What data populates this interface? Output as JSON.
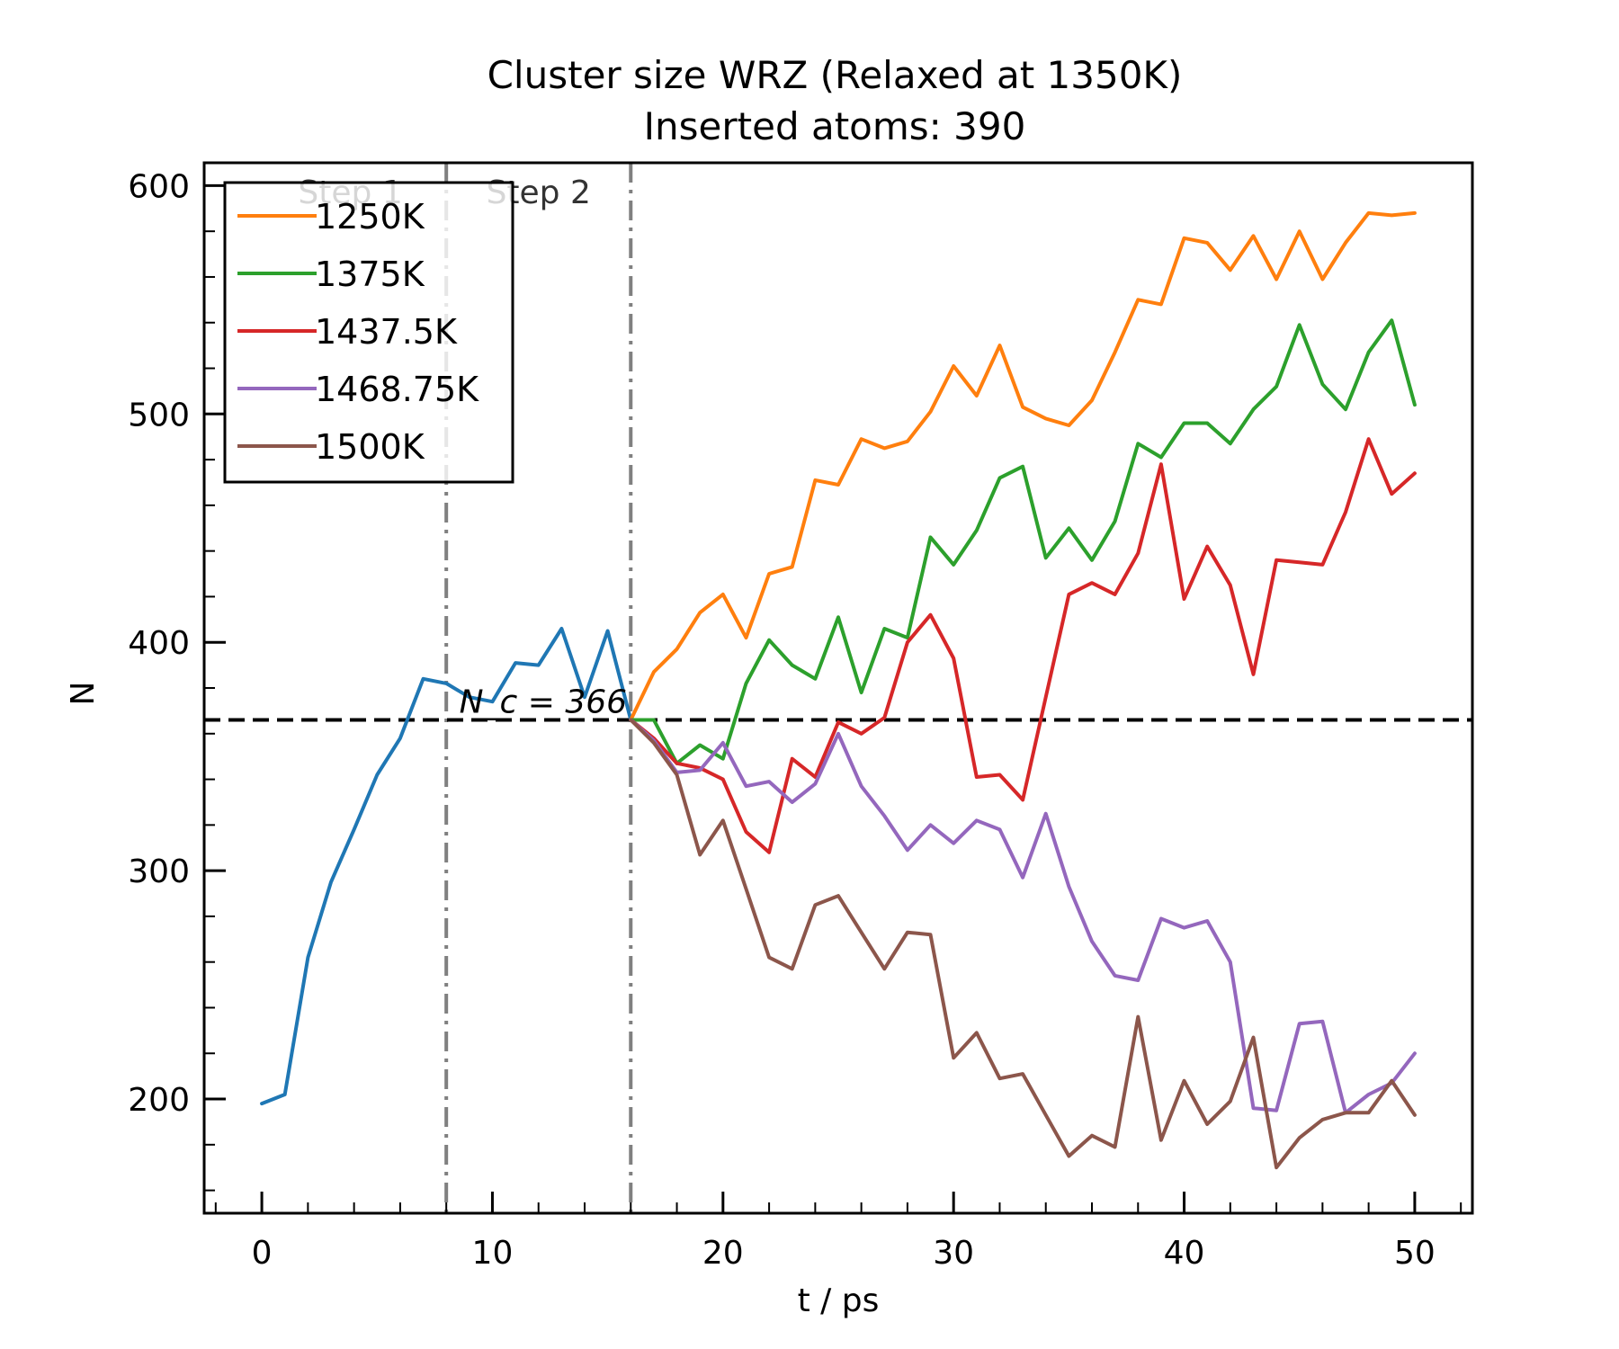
{
  "chart_data": {
    "type": "line",
    "title": "Cluster size WRZ (Relaxed at 1350K)",
    "subtitle": "Inserted atoms: 390",
    "xlabel": "t / ps",
    "ylabel": "N",
    "xlim": [
      -2.5,
      52.5
    ],
    "ylim": [
      150,
      610
    ],
    "xticks": [
      0,
      10,
      20,
      30,
      40,
      50
    ],
    "yticks": [
      200,
      300,
      400,
      500,
      600
    ],
    "grid": false,
    "legend_position": "top-left",
    "step_lines": [
      8,
      16
    ],
    "step_labels": [
      "Step 1",
      "Step 2"
    ],
    "threshold": {
      "value": 366,
      "label": "N_c = 366"
    },
    "series": [
      {
        "color": "#1f77b4",
        "x": [
          0,
          1,
          2,
          3,
          4,
          5,
          6,
          7,
          8,
          9,
          10,
          11,
          12,
          13,
          14,
          15,
          16
        ],
        "y": [
          198,
          202,
          262,
          295,
          318,
          342,
          358,
          384,
          382,
          376,
          374,
          391,
          390,
          406,
          376,
          405,
          366
        ]
      },
      {
        "name": "1250K",
        "color": "#ff7f0e",
        "x": [
          16,
          17,
          18,
          19,
          20,
          21,
          22,
          23,
          24,
          25,
          26,
          27,
          28,
          29,
          30,
          31,
          32,
          33,
          34,
          35,
          36,
          37,
          38,
          39,
          40,
          41,
          42,
          43,
          44,
          45,
          46,
          47,
          48,
          49,
          50
        ],
        "y": [
          366,
          387,
          397,
          413,
          421,
          402,
          430,
          433,
          471,
          469,
          489,
          485,
          488,
          501,
          521,
          508,
          530,
          503,
          498,
          495,
          506,
          527,
          550,
          548,
          577,
          575,
          563,
          578,
          559,
          580,
          559,
          575,
          588,
          587,
          588
        ]
      },
      {
        "name": "1375K",
        "color": "#2ca02c",
        "x": [
          16,
          17,
          18,
          19,
          20,
          21,
          22,
          23,
          24,
          25,
          26,
          27,
          28,
          29,
          30,
          31,
          32,
          33,
          34,
          35,
          36,
          37,
          38,
          39,
          40,
          41,
          42,
          43,
          44,
          45,
          46,
          47,
          48,
          49,
          50
        ],
        "y": [
          366,
          366,
          347,
          355,
          349,
          382,
          401,
          390,
          384,
          411,
          378,
          406,
          402,
          446,
          434,
          449,
          472,
          477,
          437,
          450,
          436,
          453,
          487,
          481,
          496,
          496,
          487,
          502,
          512,
          539,
          513,
          502,
          527,
          541,
          504
        ]
      },
      {
        "name": "1437.5K",
        "color": "#d62728",
        "x": [
          16,
          17,
          18,
          19,
          20,
          21,
          22,
          23,
          24,
          25,
          26,
          27,
          28,
          29,
          30,
          31,
          32,
          33,
          34,
          35,
          36,
          37,
          38,
          39,
          40,
          41,
          42,
          43,
          44,
          45,
          46,
          47,
          48,
          49,
          50
        ],
        "y": [
          366,
          358,
          347,
          345,
          340,
          317,
          308,
          349,
          341,
          365,
          360,
          367,
          400,
          412,
          393,
          341,
          342,
          331,
          376,
          421,
          426,
          421,
          439,
          478,
          419,
          442,
          425,
          386,
          436,
          435,
          434,
          457,
          489,
          465,
          474
        ]
      },
      {
        "name": "1468.75K",
        "color": "#9467bd",
        "x": [
          16,
          17,
          18,
          19,
          20,
          21,
          22,
          23,
          24,
          25,
          26,
          27,
          28,
          29,
          30,
          31,
          32,
          33,
          34,
          35,
          36,
          37,
          38,
          39,
          40,
          41,
          42,
          43,
          44,
          45,
          46,
          47,
          48,
          49,
          50
        ],
        "y": [
          366,
          357,
          343,
          344,
          356,
          337,
          339,
          330,
          338,
          360,
          337,
          324,
          309,
          320,
          312,
          322,
          318,
          297,
          325,
          293,
          269,
          254,
          252,
          279,
          275,
          278,
          260,
          196,
          195,
          233,
          234,
          194,
          202,
          207,
          220
        ]
      },
      {
        "name": "1500K",
        "color": "#8c564b",
        "x": [
          16,
          17,
          18,
          19,
          20,
          21,
          22,
          23,
          24,
          25,
          26,
          27,
          28,
          29,
          30,
          31,
          32,
          33,
          34,
          35,
          36,
          37,
          38,
          39,
          40,
          41,
          42,
          43,
          44,
          45,
          46,
          47,
          48,
          49,
          50
        ],
        "y": [
          366,
          356,
          342,
          307,
          322,
          292,
          262,
          257,
          285,
          289,
          273,
          257,
          273,
          272,
          218,
          229,
          209,
          211,
          193,
          175,
          184,
          179,
          236,
          182,
          208,
          189,
          199,
          227,
          170,
          183,
          191,
          194,
          194,
          208,
          193
        ]
      }
    ]
  }
}
